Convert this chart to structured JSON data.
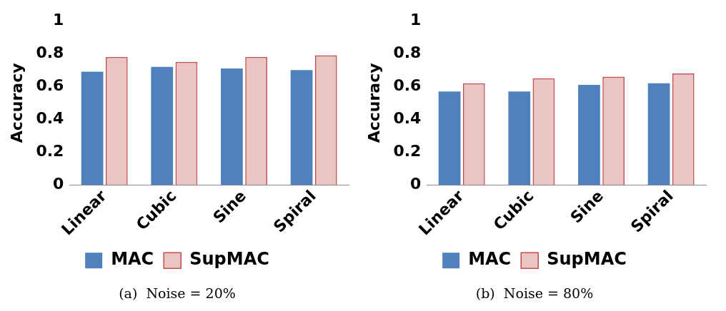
{
  "chart_data": [
    {
      "type": "bar",
      "title": "(a)  Noise = 20%",
      "ylabel": "Accuracy",
      "categories": [
        "Linear",
        "Cubic",
        "Sine",
        "Spiral"
      ],
      "ylim": [
        0,
        1
      ],
      "yticks": [
        0,
        0.2,
        0.4,
        0.6,
        0.8,
        1
      ],
      "grid": false,
      "legend": "bottom",
      "series": [
        {
          "name": "MAC",
          "color": "#4f81bd",
          "values": [
            0.69,
            0.72,
            0.71,
            0.7
          ]
        },
        {
          "name": "SupMAC",
          "color": "#c0504d",
          "values": [
            0.78,
            0.75,
            0.78,
            0.79
          ]
        }
      ]
    },
    {
      "type": "bar",
      "title": "(b)  Noise = 80%",
      "ylabel": "Accuracy",
      "categories": [
        "Linear",
        "Cubic",
        "Sine",
        "Spiral"
      ],
      "ylim": [
        0,
        1
      ],
      "yticks": [
        0,
        0.2,
        0.4,
        0.6,
        0.8,
        1
      ],
      "grid": false,
      "legend": "bottom",
      "series": [
        {
          "name": "MAC",
          "color": "#4f81bd",
          "values": [
            0.57,
            0.57,
            0.61,
            0.62
          ]
        },
        {
          "name": "SupMAC",
          "color": "#c0504d",
          "values": [
            0.62,
            0.65,
            0.66,
            0.68
          ]
        }
      ]
    }
  ]
}
